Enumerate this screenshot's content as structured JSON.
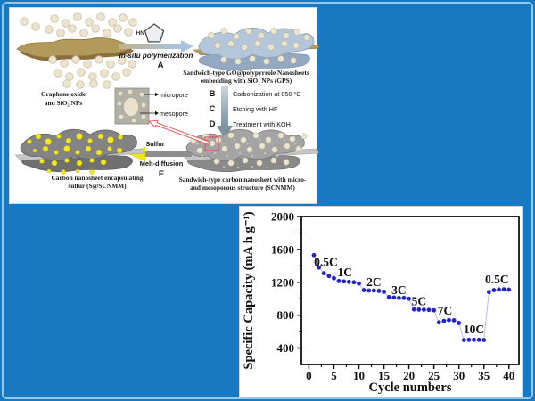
{
  "slide": {
    "background_color": "#1878c0",
    "edge_highlight_color": "#b5dcf5"
  },
  "diagram": {
    "molecule_label": "HN",
    "step_a": {
      "letter": "A",
      "text": "In-situ polymerization"
    },
    "step_b": {
      "letter": "B",
      "text": "Carbonization at 850 °C"
    },
    "step_c": {
      "letter": "C",
      "text": "Etching with HF"
    },
    "step_d": {
      "letter": "D",
      "text": "Treatment with KOH"
    },
    "step_e": {
      "letter": "E",
      "text_top": "Sulfur",
      "text_bottom": "Melt-diffusion"
    },
    "captions": {
      "go": [
        "Graphene oxide",
        "and SiO₂ NPs"
      ],
      "gps": [
        "Sandwich-type GO@polypyrrole Nanosheets",
        "embedding with SiO₂ NPs (GPS)"
      ],
      "micropore": "micropore",
      "mesopore": "mesopore",
      "scnmm": [
        "Sandwich-type carbon nanosheet with micro-",
        "and mesoporous structure (SCNMM)"
      ],
      "s_scnmm": [
        "Carbon nanosheet encapsulating",
        "sulfur (S@SCNMM)"
      ]
    },
    "colors": {
      "go_sheet": "#b29a5d",
      "gps_sheet": "#b3c6da",
      "carbon_gray": "#a4a4a4",
      "sulfur_yellow": "#f2e51c",
      "sphere_beige": "#ece4cf",
      "highlight_red": "#e05050"
    }
  },
  "chart_data": {
    "type": "scatter",
    "series_name": "rate capability",
    "x": [
      1,
      2,
      3,
      4,
      5,
      6,
      7,
      8,
      9,
      10,
      11,
      12,
      13,
      14,
      15,
      16,
      17,
      18,
      19,
      20,
      21,
      22,
      23,
      24,
      25,
      26,
      27,
      28,
      29,
      30,
      31,
      32,
      33,
      34,
      35,
      36,
      37,
      38,
      39,
      40
    ],
    "y": [
      1530,
      1380,
      1310,
      1275,
      1250,
      1215,
      1210,
      1205,
      1200,
      1185,
      1105,
      1100,
      1100,
      1095,
      1085,
      1020,
      1015,
      1010,
      1010,
      1000,
      870,
      868,
      866,
      864,
      860,
      712,
      730,
      740,
      738,
      705,
      497,
      500,
      500,
      500,
      498,
      1082,
      1105,
      1112,
      1115,
      1110
    ],
    "xlabel": "Cycle numbers",
    "ylabel": "Specific Capacity (mA h g⁻¹)",
    "xlim": [
      -1.5,
      42
    ],
    "ylim": [
      200,
      2000
    ],
    "xticks": [
      0,
      5,
      10,
      15,
      20,
      25,
      30,
      35,
      40
    ],
    "yticks": [
      400,
      800,
      1200,
      1600,
      2000
    ],
    "x_minor_ticks": [
      2.5,
      7.5,
      12.5,
      17.5,
      22.5,
      27.5,
      32.5,
      37.5
    ],
    "y_minor_ticks": [
      600,
      1000,
      1400,
      1800
    ],
    "grid": "off",
    "point_color": "#2323cb",
    "line_color": "#b7bfe9",
    "annotations": [
      {
        "label": "0.5C",
        "x": 3.4,
        "y": 1440
      },
      {
        "label": "1C",
        "x": 7.2,
        "y": 1315
      },
      {
        "label": "2C",
        "x": 13,
        "y": 1200
      },
      {
        "label": "3C",
        "x": 18,
        "y": 1100
      },
      {
        "label": "5C",
        "x": 22,
        "y": 962
      },
      {
        "label": "7C",
        "x": 27.2,
        "y": 852
      },
      {
        "label": "10C",
        "x": 33,
        "y": 622
      },
      {
        "label": "0.5C",
        "x": 37.6,
        "y": 1232
      }
    ]
  }
}
